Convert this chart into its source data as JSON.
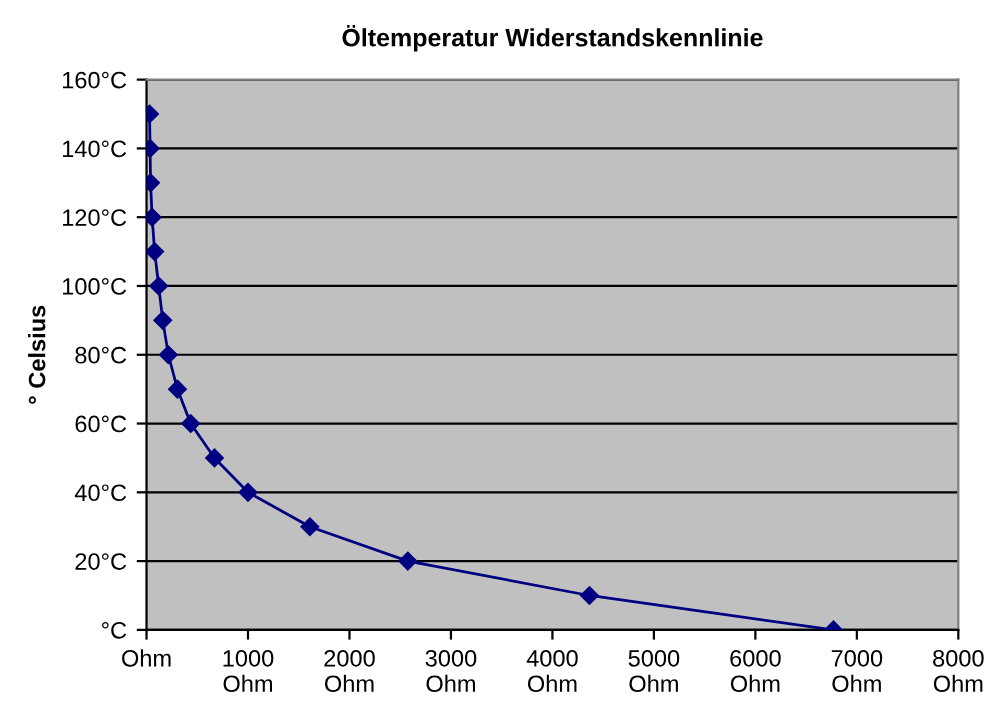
{
  "chart_data": {
    "type": "line",
    "title": "Öltemperatur Widerstandskennlinie",
    "ylabel": "° Celsius",
    "x": [
      6770,
      4365,
      2575,
      1610,
      1000,
      670,
      435,
      305,
      215,
      160,
      120,
      80,
      55,
      40,
      35,
      30
    ],
    "values": [
      0,
      10,
      20,
      30,
      40,
      50,
      60,
      70,
      80,
      90,
      100,
      110,
      120,
      130,
      140,
      150
    ],
    "color": "#000080",
    "marker": "diamond",
    "line_style": "solid",
    "grid": "y",
    "legend": false,
    "xlim": [
      0,
      8000
    ],
    "ylim": [
      0,
      160
    ],
    "xticks": [
      {
        "value": 0,
        "label": "Ohm"
      },
      {
        "value": 1000,
        "label": "1000\nOhm"
      },
      {
        "value": 2000,
        "label": "2000\nOhm"
      },
      {
        "value": 3000,
        "label": "3000\nOhm"
      },
      {
        "value": 4000,
        "label": "4000\nOhm"
      },
      {
        "value": 5000,
        "label": "5000\nOhm"
      },
      {
        "value": 6000,
        "label": "6000\nOhm"
      },
      {
        "value": 7000,
        "label": "7000\nOhm"
      },
      {
        "value": 8000,
        "label": "8000\nOhm"
      }
    ],
    "yticks": [
      {
        "value": 0,
        "label": "°C"
      },
      {
        "value": 20,
        "label": "20°C"
      },
      {
        "value": 40,
        "label": "40°C"
      },
      {
        "value": 60,
        "label": "60°C"
      },
      {
        "value": 80,
        "label": "80°C"
      },
      {
        "value": 100,
        "label": "100°C"
      },
      {
        "value": 120,
        "label": "120°C"
      },
      {
        "value": 140,
        "label": "140°C"
      },
      {
        "value": 160,
        "label": "160°C"
      }
    ]
  }
}
